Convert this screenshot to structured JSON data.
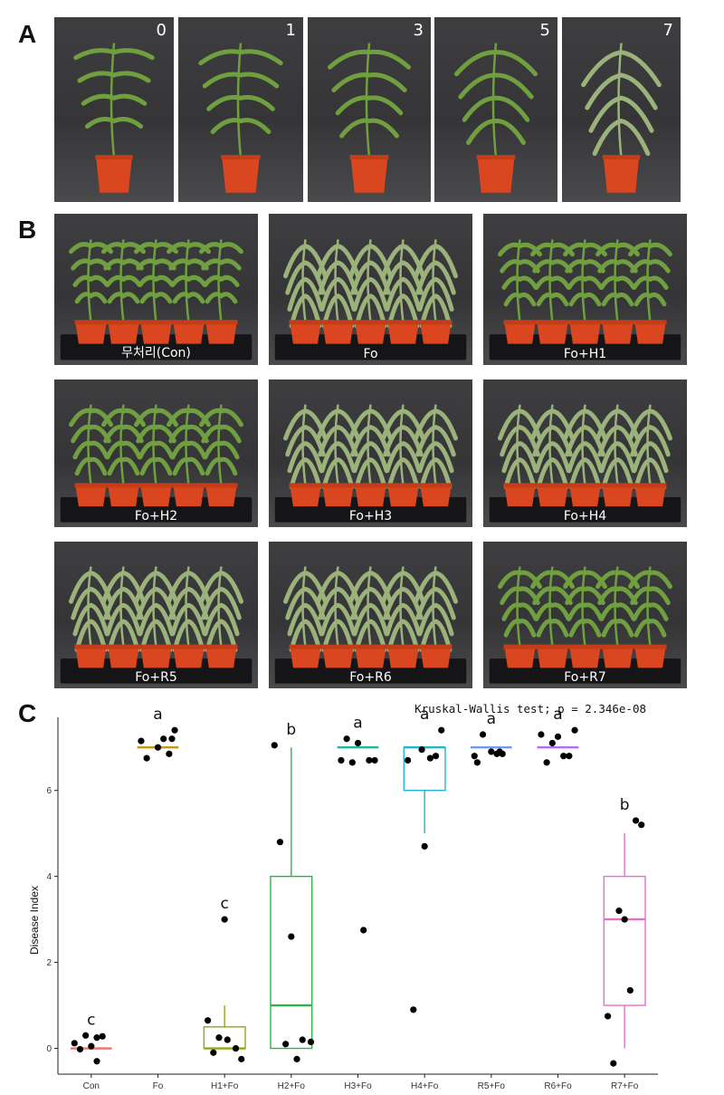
{
  "panel_a": {
    "letter": "A",
    "days": [
      "0",
      "1",
      "3",
      "5",
      "7"
    ]
  },
  "panel_b": {
    "letter": "B",
    "trays": [
      "무처리(Con)",
      "Fo",
      "Fo+H1",
      "Fo+H2",
      "Fo+H3",
      "Fo+H4",
      "Fo+R5",
      "Fo+R6",
      "Fo+R7"
    ]
  },
  "panel_c": {
    "letter": "C"
  },
  "chart_data": {
    "type": "box",
    "annotation": "Kruskal-Wallis test; p = 2.346e-08",
    "ylabel": "Disease Index",
    "xlabel": "",
    "ylim": [
      -0.6,
      7.7
    ],
    "yticks": [
      0,
      2,
      4,
      6
    ],
    "grid": false,
    "legend": "none",
    "categories": [
      "Con",
      "Fo",
      "H1+Fo",
      "H2+Fo",
      "H3+Fo",
      "H4+Fo",
      "R5+Fo",
      "R6+Fo",
      "R7+Fo"
    ],
    "colors": [
      "#e8756a",
      "#c9990c",
      "#8aab17",
      "#2eb34a",
      "#1fb89b",
      "#21b5cf",
      "#6d9eeb",
      "#b36ef0",
      "#e66fc8"
    ],
    "letters": [
      "c",
      "a",
      "c",
      "b",
      "a",
      "a",
      "a",
      "a",
      "b"
    ],
    "boxes": [
      {
        "q1": 0,
        "median": 0,
        "q3": 0,
        "whisker_low": 0,
        "whisker_high": 0
      },
      {
        "q1": 7,
        "median": 7,
        "q3": 7,
        "whisker_low": 7,
        "whisker_high": 7
      },
      {
        "q1": 0,
        "median": 0,
        "q3": 0.5,
        "whisker_low": 0,
        "whisker_high": 1
      },
      {
        "q1": 0,
        "median": 1,
        "q3": 4,
        "whisker_low": 0,
        "whisker_high": 7
      },
      {
        "q1": 7,
        "median": 7,
        "q3": 7,
        "whisker_low": 7,
        "whisker_high": 7
      },
      {
        "q1": 6,
        "median": 7,
        "q3": 7,
        "whisker_low": 5,
        "whisker_high": 7
      },
      {
        "q1": 7,
        "median": 7,
        "q3": 7,
        "whisker_low": 7,
        "whisker_high": 7
      },
      {
        "q1": 7,
        "median": 7,
        "q3": 7,
        "whisker_low": 7,
        "whisker_high": 7
      },
      {
        "q1": 1,
        "median": 3,
        "q3": 4,
        "whisker_low": 0,
        "whisker_high": 5
      }
    ],
    "points": [
      [
        [
          -0.3,
          0.12
        ],
        [
          -0.2,
          -0.02
        ],
        [
          -0.1,
          0.3
        ],
        [
          0.0,
          0.05
        ],
        [
          0.1,
          0.25
        ],
        [
          0.2,
          0.28
        ],
        [
          0.1,
          -0.3
        ]
      ],
      [
        [
          -0.3,
          7.15
        ],
        [
          -0.2,
          6.75
        ],
        [
          0.0,
          7.0
        ],
        [
          0.1,
          7.2
        ],
        [
          0.2,
          6.85
        ],
        [
          0.25,
          7.2
        ],
        [
          0.3,
          7.4
        ]
      ],
      [
        [
          -0.3,
          0.65
        ],
        [
          -0.2,
          -0.1
        ],
        [
          -0.1,
          0.25
        ],
        [
          0.0,
          3.0
        ],
        [
          0.05,
          0.2
        ],
        [
          0.2,
          0.0
        ],
        [
          0.3,
          -0.25
        ]
      ],
      [
        [
          -0.3,
          7.05
        ],
        [
          -0.2,
          4.8
        ],
        [
          -0.1,
          0.1
        ],
        [
          0.0,
          2.6
        ],
        [
          0.1,
          -0.25
        ],
        [
          0.2,
          0.2
        ],
        [
          0.35,
          0.15
        ]
      ],
      [
        [
          -0.3,
          6.7
        ],
        [
          -0.2,
          7.2
        ],
        [
          -0.1,
          6.65
        ],
        [
          0.0,
          7.1
        ],
        [
          0.1,
          2.75
        ],
        [
          0.2,
          6.7
        ],
        [
          0.3,
          6.7
        ]
      ],
      [
        [
          -0.3,
          6.7
        ],
        [
          -0.2,
          0.9
        ],
        [
          -0.05,
          6.95
        ],
        [
          0.0,
          4.7
        ],
        [
          0.1,
          6.75
        ],
        [
          0.2,
          6.8
        ],
        [
          0.3,
          7.4
        ]
      ],
      [
        [
          -0.3,
          6.8
        ],
        [
          -0.25,
          6.65
        ],
        [
          -0.15,
          7.3
        ],
        [
          0.0,
          6.9
        ],
        [
          0.1,
          6.85
        ],
        [
          0.15,
          6.9
        ],
        [
          0.2,
          6.85
        ]
      ],
      [
        [
          -0.3,
          7.3
        ],
        [
          -0.2,
          6.65
        ],
        [
          -0.1,
          7.1
        ],
        [
          0.0,
          7.25
        ],
        [
          0.1,
          6.8
        ],
        [
          0.2,
          6.8
        ],
        [
          0.3,
          7.4
        ]
      ],
      [
        [
          -0.3,
          0.75
        ],
        [
          -0.2,
          -0.35
        ],
        [
          -0.1,
          3.2
        ],
        [
          0.0,
          3.0
        ],
        [
          0.1,
          1.35
        ],
        [
          0.2,
          5.3
        ],
        [
          0.3,
          5.2
        ]
      ]
    ]
  }
}
